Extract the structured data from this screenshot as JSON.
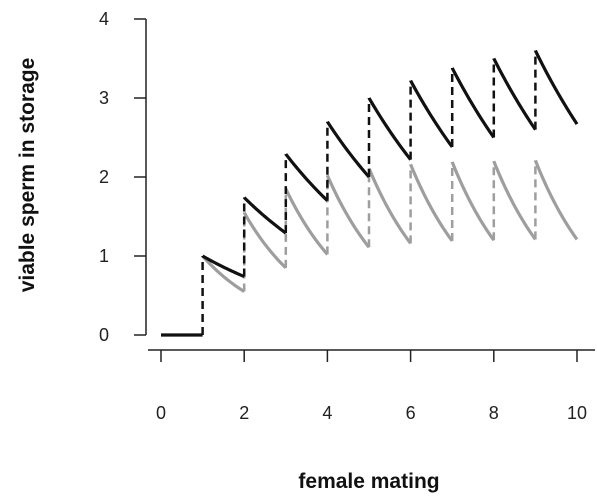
{
  "chart_data": {
    "type": "line",
    "title": "",
    "xlabel": "female mating",
    "ylabel": "viable sperm in storage",
    "xlim": [
      0,
      10
    ],
    "ylim": [
      0,
      4
    ],
    "xticks": [
      0,
      2,
      4,
      6,
      8,
      10
    ],
    "yticks": [
      0,
      1,
      2,
      3,
      4
    ],
    "grid": false,
    "legend": "none",
    "series": [
      {
        "color": "#111111",
        "segments": [
          {
            "x": [
              0,
              1
            ],
            "y": [
              0,
              0
            ]
          },
          {
            "x": [
              1,
              2
            ],
            "y": [
              1.0,
              0.74
            ]
          },
          {
            "x": [
              2,
              3
            ],
            "y": [
              1.74,
              1.29
            ]
          },
          {
            "x": [
              3,
              4
            ],
            "y": [
              2.29,
              1.7
            ]
          },
          {
            "x": [
              4,
              5
            ],
            "y": [
              2.7,
              2.0
            ]
          },
          {
            "x": [
              5,
              6
            ],
            "y": [
              3.0,
              2.22
            ]
          },
          {
            "x": [
              6,
              7
            ],
            "y": [
              3.22,
              2.38
            ]
          },
          {
            "x": [
              7,
              8
            ],
            "y": [
              3.38,
              2.5
            ]
          },
          {
            "x": [
              8,
              9
            ],
            "y": [
              3.5,
              2.6
            ]
          },
          {
            "x": [
              9,
              10
            ],
            "y": [
              3.6,
              2.67
            ]
          }
        ],
        "jumps": [
          {
            "x": 1,
            "from": 0,
            "to": 1.0
          },
          {
            "x": 2,
            "from": 0.74,
            "to": 1.74
          },
          {
            "x": 3,
            "from": 1.29,
            "to": 2.29
          },
          {
            "x": 4,
            "from": 1.7,
            "to": 2.7
          },
          {
            "x": 5,
            "from": 2.0,
            "to": 3.0
          },
          {
            "x": 6,
            "from": 2.22,
            "to": 3.22
          },
          {
            "x": 7,
            "from": 2.38,
            "to": 3.38
          },
          {
            "x": 8,
            "from": 2.5,
            "to": 3.5
          },
          {
            "x": 9,
            "from": 2.6,
            "to": 3.6
          }
        ]
      },
      {
        "color": "#9e9e9e",
        "segments": [
          {
            "x": [
              1,
              2
            ],
            "y": [
              1.0,
              0.55
            ]
          },
          {
            "x": [
              2,
              3
            ],
            "y": [
              1.55,
              0.85
            ]
          },
          {
            "x": [
              3,
              4
            ],
            "y": [
              1.85,
              1.02
            ]
          },
          {
            "x": [
              4,
              5
            ],
            "y": [
              2.02,
              1.11
            ]
          },
          {
            "x": [
              5,
              6
            ],
            "y": [
              2.11,
              1.16
            ]
          },
          {
            "x": [
              6,
              7
            ],
            "y": [
              2.16,
              1.19
            ]
          },
          {
            "x": [
              7,
              8
            ],
            "y": [
              2.19,
              1.2
            ]
          },
          {
            "x": [
              8,
              9
            ],
            "y": [
              2.2,
              1.21
            ]
          },
          {
            "x": [
              9,
              10
            ],
            "y": [
              2.21,
              1.21
            ]
          }
        ],
        "jumps": [
          {
            "x": 2,
            "from": 0.55,
            "to": 1.55
          },
          {
            "x": 3,
            "from": 0.85,
            "to": 1.85
          },
          {
            "x": 4,
            "from": 1.02,
            "to": 2.02
          },
          {
            "x": 5,
            "from": 1.11,
            "to": 2.11
          },
          {
            "x": 6,
            "from": 1.16,
            "to": 2.16
          },
          {
            "x": 7,
            "from": 1.19,
            "to": 2.19
          },
          {
            "x": 8,
            "from": 1.2,
            "to": 2.2
          },
          {
            "x": 9,
            "from": 1.21,
            "to": 2.21
          }
        ]
      }
    ]
  }
}
